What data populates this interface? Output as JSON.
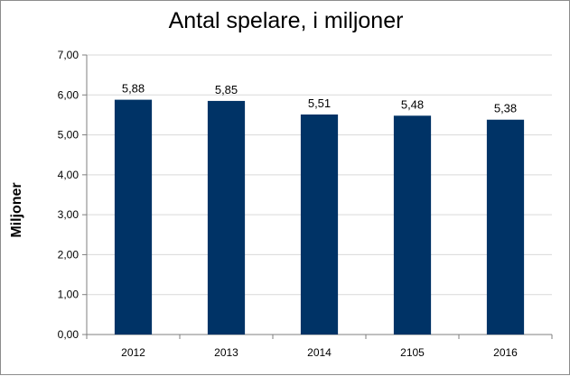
{
  "chart_data": {
    "type": "bar",
    "title": "Antal spelare, i miljoner",
    "xlabel": "",
    "ylabel": "Miljoner",
    "categories": [
      "2012",
      "2013",
      "2014",
      "2105",
      "2016"
    ],
    "values": [
      5.88,
      5.85,
      5.51,
      5.48,
      5.38
    ],
    "data_labels": [
      "5,88",
      "5,85",
      "5,51",
      "5,48",
      "5,38"
    ],
    "ylim": [
      0,
      7
    ],
    "y_ticks": [
      "0,00",
      "1,00",
      "2,00",
      "3,00",
      "4,00",
      "5,00",
      "6,00",
      "7,00"
    ],
    "y_tick_values": [
      0,
      1,
      2,
      3,
      4,
      5,
      6,
      7
    ],
    "grid": true,
    "legend": "none",
    "colors": {
      "bar": "#003366",
      "grid": "#d9d9d9",
      "axis": "#7f7f7f"
    }
  }
}
